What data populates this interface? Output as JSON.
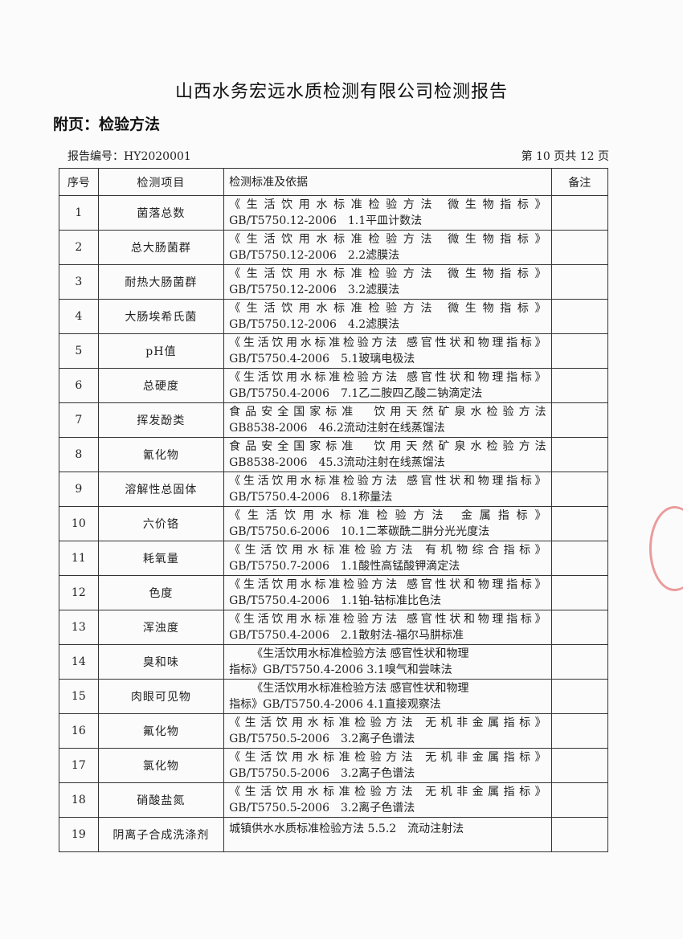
{
  "document": {
    "title": "山西水务宏远水质检测有限公司检测报告",
    "subtitle": "附页：检验方法",
    "report_number": "报告编号：HY2020001",
    "page_info": "第 10 页共 12 页"
  },
  "table": {
    "headers": [
      "序号",
      "检测项目",
      "检测标准及依据",
      "备注"
    ],
    "rows": [
      {
        "no": "1",
        "item": "菌落总数",
        "line1": "《生活饮用水标准检验方法 微生物指标》",
        "line2": "GB/T5750.12-2006　1.1平皿计数法",
        "note": ""
      },
      {
        "no": "2",
        "item": "总大肠菌群",
        "line1": "《生活饮用水标准检验方法 微生物指标》",
        "line2": "GB/T5750.12-2006　2.2滤膜法",
        "note": ""
      },
      {
        "no": "3",
        "item": "耐热大肠菌群",
        "line1": "《生活饮用水标准检验方法 微生物指标》",
        "line2": "GB/T5750.12-2006　3.2滤膜法",
        "note": ""
      },
      {
        "no": "4",
        "item": "大肠埃希氏菌",
        "line1": "《生活饮用水标准检验方法 微生物指标》",
        "line2": "GB/T5750.12-2006　4.2滤膜法",
        "note": ""
      },
      {
        "no": "5",
        "item": "pH值",
        "line1": "《生活饮用水标准检验方法 感官性状和物理指标》",
        "line2": "GB/T5750.4-2006　5.1玻璃电极法",
        "note": ""
      },
      {
        "no": "6",
        "item": "总硬度",
        "line1": "《生活饮用水标准检验方法 感官性状和物理指标》",
        "line2": "GB/T5750.4-2006　7.1乙二胺四乙酸二钠滴定法",
        "note": ""
      },
      {
        "no": "7",
        "item": "挥发酚类",
        "line1": "食品安全国家标准　饮用天然矿泉水检验方法",
        "line2": "GB8538-2006　46.2流动注射在线蒸馏法",
        "note": ""
      },
      {
        "no": "8",
        "item": "氰化物",
        "line1": "食品安全国家标准　饮用天然矿泉水检验方法",
        "line2": "GB8538-2006　45.3流动注射在线蒸馏法",
        "note": ""
      },
      {
        "no": "9",
        "item": "溶解性总固体",
        "line1": "《生活饮用水标准检验方法 感官性状和物理指标》",
        "line2": "GB/T5750.4-2006　8.1称量法",
        "note": ""
      },
      {
        "no": "10",
        "item": "六价铬",
        "line1": "《生活饮用水标准检验方法 金属指标》",
        "line2": "GB/T5750.6-2006　10.1二苯碳酰二肼分光光度法",
        "note": ""
      },
      {
        "no": "11",
        "item": "耗氧量",
        "line1": "《生活饮用水标准检验方法 有机物综合指标》",
        "line2": "GB/T5750.7-2006　1.1酸性高锰酸钾滴定法",
        "note": ""
      },
      {
        "no": "12",
        "item": "色度",
        "line1": "《生活饮用水标准检验方法 感官性状和物理指标》",
        "line2": "GB/T5750.4-2006　1.1铂-钴标准比色法",
        "note": ""
      },
      {
        "no": "13",
        "item": "浑浊度",
        "line1": "《生活饮用水标准检验方法 感官性状和物理指标》",
        "line2": "GB/T5750.4-2006　2.1散射法-福尔马肼标准",
        "note": ""
      },
      {
        "no": "14",
        "item": "臭和味",
        "line1": "《生活饮用水标准检验方法 感官性状和物理",
        "line2": "指标》GB/T5750.4-2006 3.1嗅气和尝味法",
        "note": "",
        "indent": true
      },
      {
        "no": "15",
        "item": "肉眼可见物",
        "line1": "《生活饮用水标准检验方法 感官性状和物理",
        "line2": "指标》GB/T5750.4-2006 4.1直接观察法",
        "note": "",
        "indent": true
      },
      {
        "no": "16",
        "item": "氟化物",
        "line1": "《生活饮用水标准检验方法 无机非金属指标》",
        "line2": "GB/T5750.5-2006　3.2离子色谱法",
        "note": ""
      },
      {
        "no": "17",
        "item": "氯化物",
        "line1": "《生活饮用水标准检验方法 无机非金属指标》",
        "line2": "GB/T5750.5-2006　3.2离子色谱法",
        "note": ""
      },
      {
        "no": "18",
        "item": "硝酸盐氮",
        "line1": "《生活饮用水标准检验方法 无机非金属指标》",
        "line2": "GB/T5750.5-2006　3.2离子色谱法",
        "note": ""
      },
      {
        "no": "19",
        "item": "阴离子合成洗涤剂",
        "line1": "城镇供水水质标准检验方法 5.5.2　流动注射法",
        "line2": "",
        "note": "",
        "indent": false,
        "single": true
      }
    ]
  },
  "colors": {
    "stamp": "#dc3c3c",
    "ink": "#222222"
  }
}
